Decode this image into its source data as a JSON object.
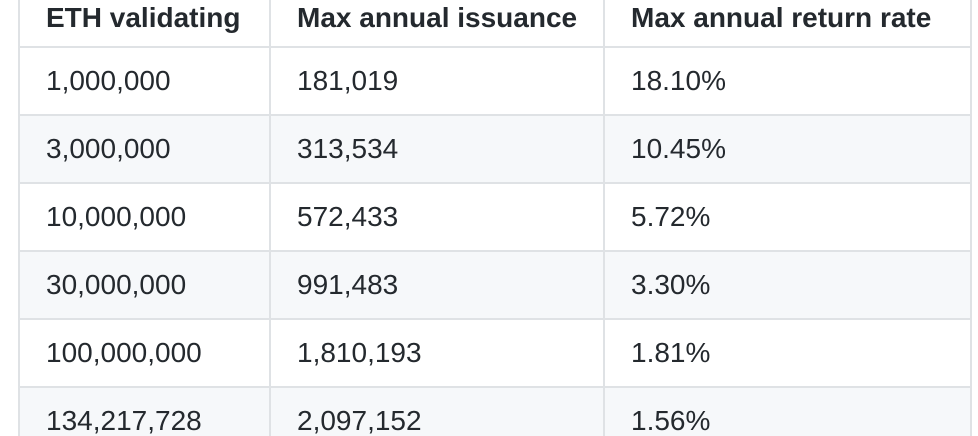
{
  "table": {
    "headers": [
      "ETH validating",
      "Max annual issuance",
      "Max annual return rate"
    ],
    "rows": [
      [
        "1,000,000",
        "181,019",
        "18.10%"
      ],
      [
        "3,000,000",
        "313,534",
        "10.45%"
      ],
      [
        "10,000,000",
        "572,433",
        "5.72%"
      ],
      [
        "30,000,000",
        "991,483",
        "3.30%"
      ],
      [
        "100,000,000",
        "1,810,193",
        "1.81%"
      ],
      [
        "134,217,728",
        "2,097,152",
        "1.56%"
      ]
    ]
  },
  "colors": {
    "border": "#dfe2e5",
    "stripe": "#f6f8fa",
    "text": "#24292e",
    "background": "#ffffff"
  }
}
